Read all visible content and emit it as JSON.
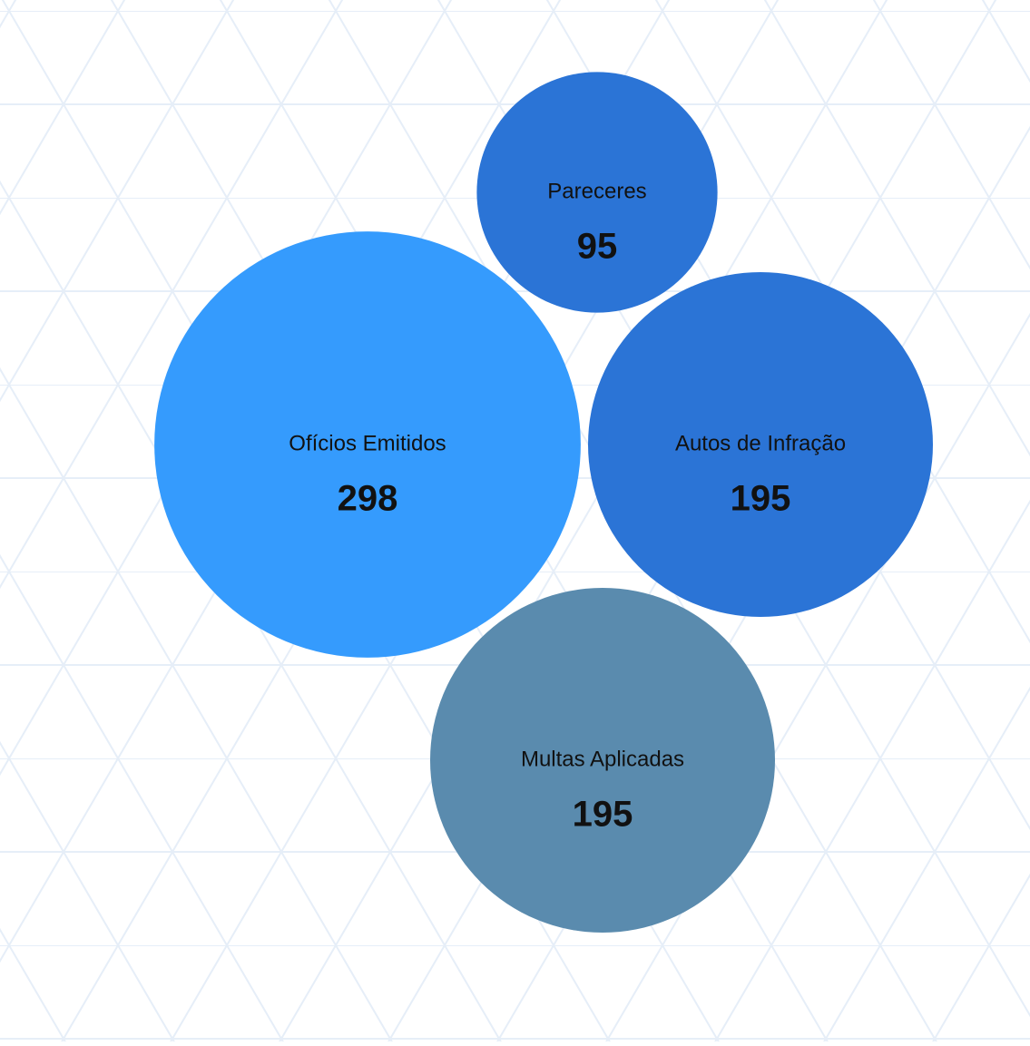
{
  "chart_data": {
    "type": "bubble",
    "categories": [
      "Ofícios Emitidos",
      "Pareceres",
      "Autos de Infração",
      "Multas Aplicadas"
    ],
    "values": [
      298,
      95,
      195,
      195
    ],
    "colors": [
      "#359bfd",
      "#2b74d6",
      "#2b74d6",
      "#5a8bae"
    ]
  }
}
